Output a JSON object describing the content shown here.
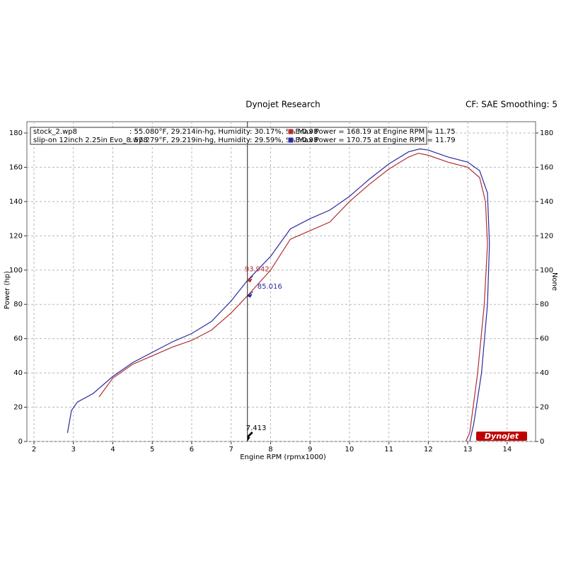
{
  "chart_data": {
    "type": "line",
    "title": "Dynojet Research",
    "subtitle": "CF: SAE Smoothing: 5",
    "x_label": "Engine RPM (rpmx1000)",
    "y_label": "Power (hp)",
    "y2_label": "None",
    "logo": "Dynojet",
    "xlim": [
      1.82,
      14.72
    ],
    "ylim": [
      0,
      186.6
    ],
    "y2lim": [
      0,
      186.6
    ],
    "xticks": [
      2,
      3,
      4,
      5,
      6,
      7,
      8,
      9,
      10,
      11,
      12,
      13,
      14
    ],
    "yticks": [
      0,
      20,
      40,
      60,
      80,
      100,
      120,
      140,
      160,
      180
    ],
    "y2ticks": [
      0,
      20,
      40,
      60,
      80,
      100,
      120,
      140,
      160,
      180
    ],
    "grid": true,
    "cursor_x": 7.413,
    "cursor_values": [
      93.942,
      85.016
    ],
    "series": [
      {
        "name": "stock_2.wp8",
        "conditions": ": 55.080°F, 29.214in-hg, Humidity: 30.17%, SAE:0.98",
        "max_power": "Max Power = 168.19 at Engine RPM = 11.75",
        "color": "#b03030",
        "x": [
          3.65,
          4,
          4.5,
          5,
          5.5,
          6,
          6.5,
          7,
          7.413,
          8,
          8.5,
          9,
          9.5,
          10,
          10.5,
          11,
          11.5,
          11.75,
          12,
          12.5,
          13,
          13.3,
          13.45,
          13.5,
          13.42,
          13.25,
          13.05,
          12.95
        ],
        "values": [
          26,
          37,
          45,
          50,
          55,
          59,
          65,
          75,
          85.016,
          100,
          118,
          123,
          128,
          140,
          150,
          159,
          166,
          168.19,
          167,
          163,
          160,
          154,
          140,
          115,
          80,
          40,
          5,
          0
        ]
      },
      {
        "name": "slip-on 12inch 2.25in Evo_8.wp8",
        "conditions": ": 57.279°F, 29.219in-hg, Humidity: 29.59%, SAE:0.98",
        "max_power": "Max Power = 170.75 at Engine RPM = 11.79",
        "color": "#2a2aa0",
        "x": [
          2.85,
          2.95,
          3.1,
          3.5,
          4,
          4.5,
          5,
          5.5,
          6,
          6.5,
          7,
          7.413,
          8,
          8.5,
          9,
          9.5,
          10,
          10.5,
          11,
          11.5,
          11.79,
          12,
          12.5,
          13,
          13.3,
          13.5,
          13.55,
          13.5,
          13.35,
          13.15,
          13.05
        ],
        "values": [
          5,
          18,
          23,
          28,
          38,
          46,
          52,
          58,
          63,
          70,
          82,
          93.942,
          108,
          124,
          130,
          135,
          143,
          153,
          162,
          169,
          170.75,
          170,
          166,
          163,
          158,
          145,
          115,
          80,
          40,
          10,
          0
        ]
      }
    ]
  }
}
